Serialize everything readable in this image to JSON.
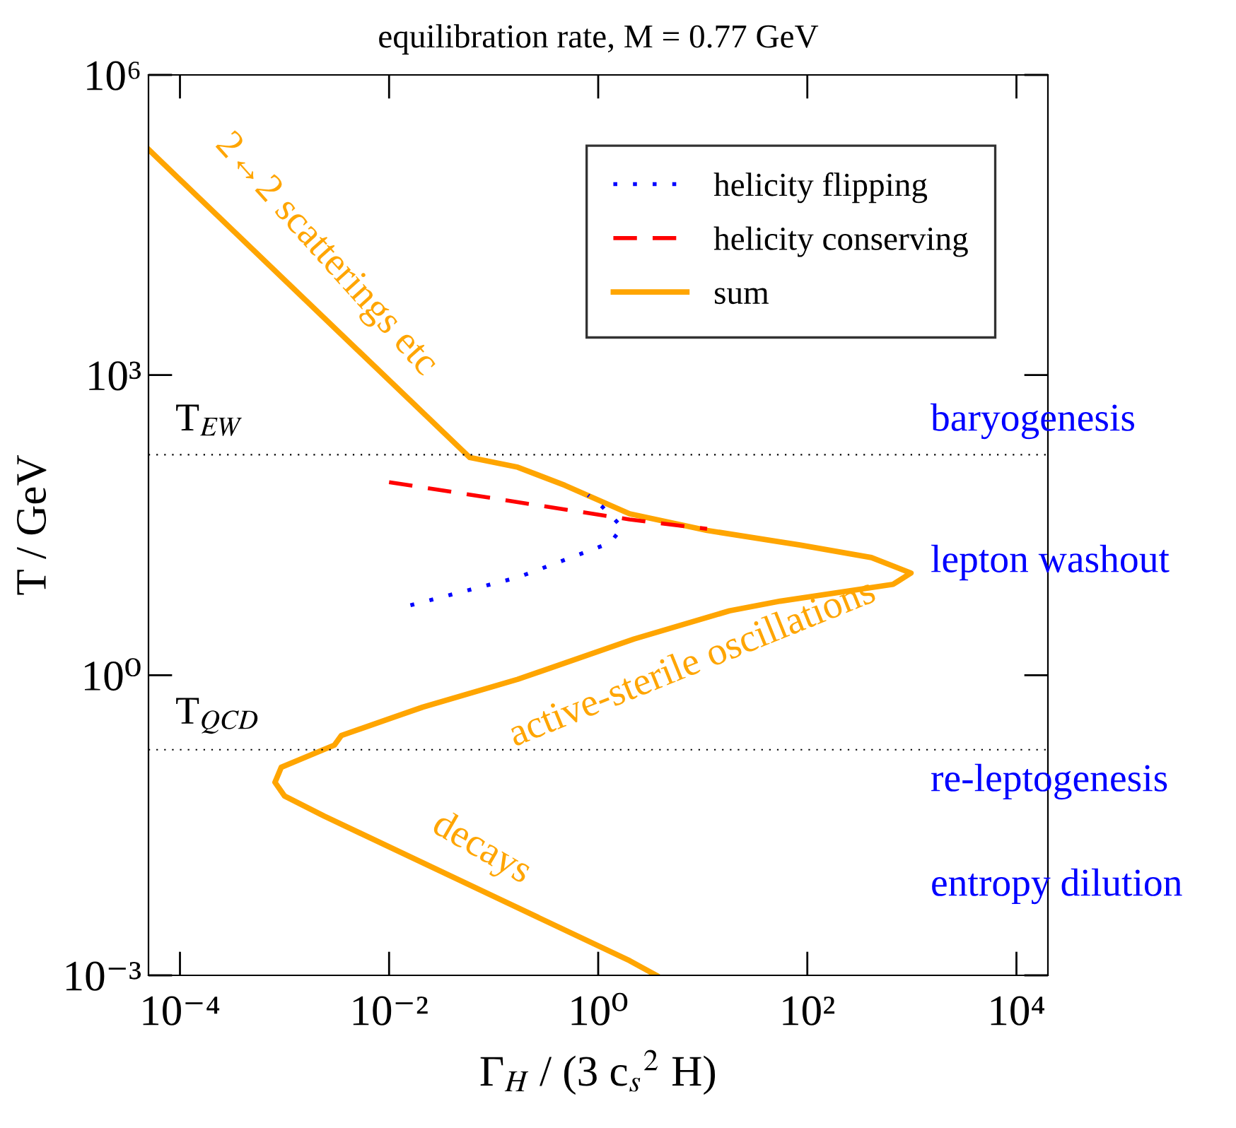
{
  "chart_data": {
    "type": "line",
    "title": "equilibration rate, M = 0.77 GeV",
    "xlabel": "Γ$_{H}$ / (3 c$_{s}$$^{2}$ H)",
    "ylabel": "T / GeV",
    "log": "xy",
    "xlim": [
      5e-05,
      20000.0
    ],
    "ylim": [
      0.001,
      1000000.0
    ],
    "xticks": [
      {
        "value": 0.0001,
        "label": "10⁻⁴"
      },
      {
        "value": 0.01,
        "label": "10⁻²"
      },
      {
        "value": 1,
        "label": "10⁰"
      },
      {
        "value": 100,
        "label": "10²"
      },
      {
        "value": 10000.0,
        "label": "10⁴"
      }
    ],
    "yticks": [
      {
        "value": 0.001,
        "label": "10⁻³"
      },
      {
        "value": 1,
        "label": "10⁰"
      },
      {
        "value": 1000,
        "label": "10³"
      },
      {
        "value": 1000000.0,
        "label": "10⁶"
      }
    ],
    "grid": false,
    "legend": "top right",
    "series": [
      {
        "name": "helicity flipping",
        "color": "#0000ff",
        "line_style": "dotted",
        "x": [
          0.016,
          0.17,
          1.3,
          1.7,
          1.1,
          0.8
        ],
        "values": [
          5.0,
          9.5,
          21,
          30,
          48,
          63
        ]
      },
      {
        "name": "helicity conserving",
        "color": "#ff0000",
        "line_style": "dashed",
        "x": [
          0.01,
          2.0,
          11
        ],
        "values": [
          85,
          36,
          29
        ]
      },
      {
        "name": "sum",
        "color": "#ffa500",
        "line_style": "solid",
        "x": [
          5e-05,
          0.059,
          0.17,
          0.48,
          2.0,
          11,
          85,
          410,
          980,
          660,
          55,
          18,
          2.2,
          0.17,
          0.021,
          0.0035,
          0.003,
          0.00093,
          0.00081,
          0.001,
          0.0024,
          2.0,
          3.6
        ],
        "values": [
          180000.0,
          150,
          120,
          79,
          41,
          28,
          20,
          15,
          10.5,
          8.1,
          5.5,
          4.4,
          2.3,
          0.91,
          0.48,
          0.25,
          0.2,
          0.12,
          0.085,
          0.062,
          0.039,
          0.0014,
          0.001
        ]
      }
    ],
    "ref_lines": [
      {
        "axis": "y",
        "value": 160,
        "label": "T$_{EW}$",
        "color": "#000000",
        "line_style": "dotted"
      },
      {
        "axis": "y",
        "value": 0.18,
        "label": "T$_{QCD}$",
        "color": "#000000",
        "line_style": "dotted"
      }
    ],
    "annotations": [
      "2↔2 scatterings etc",
      "active-sterile oscillations",
      "decays",
      "baryogenesis",
      "lepton washout",
      "re-leptogenesis",
      "entropy dilution"
    ]
  }
}
